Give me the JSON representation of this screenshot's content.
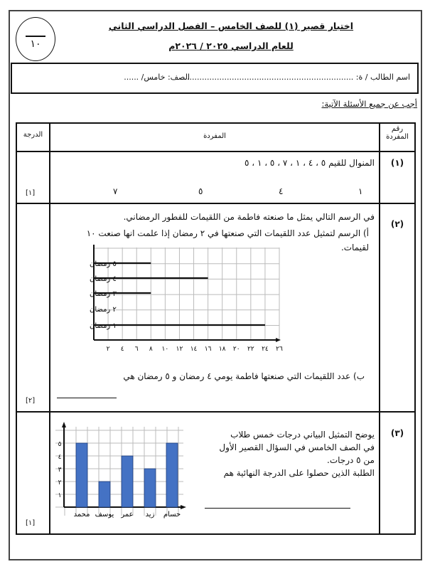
{
  "header": {
    "score_denominator": "١٠",
    "title": "اختبار قصير (١) للصف الخامس – الفصل الدراسي الثاني",
    "subtitle": "للعام الدراسي ٢٠٢٥ / ٢٠٢٦م"
  },
  "student": {
    "name_label": "اسم الطالب / ة: ......................................................................",
    "class_label": "الصف: خامس/ ......"
  },
  "instruction": "أجب عن جميع الأسئلة الآتية:",
  "table": {
    "headers": {
      "number": "رقم المفردة",
      "item": "المفردة",
      "grade": "الدرجة"
    },
    "q1": {
      "number": "(١)",
      "text": "المنوال للقيم  ٥ ، ٤ ، ١ ، ٧ ، ٥ ، ١ ، ٥",
      "options": [
        "١",
        "٤",
        "٥",
        "٧"
      ],
      "grade": "[١]"
    },
    "q2": {
      "number": "(٢)",
      "intro": "في الرسم التالي يمثل ما صنعته فاطمة من اللقيمات للفطور الرمضاني.",
      "part_a": "أ)   الرسم لتمثيل عدد اللقيمات التي صنعتها في ٢  رمضان إذا علمت انها صنعت ١٠ لقيمات.",
      "part_b": "ب)  عدد اللقيمات التي صنعتها فاطمة يومي ٤ رمضان و  ٥ رمضان هي",
      "grade": "[٢]"
    },
    "q3": {
      "number": "(٣)",
      "text": [
        "يوضح التمثيل البياني درجات خمس طلاب",
        "في الصف الخامس في السؤال القصير الأول",
        "من ٥ درجات.",
        "الطلبة الذين حصلوا على الدرجة النهائية هم"
      ],
      "grade": "[١]"
    }
  },
  "chart_data": [
    {
      "type": "bar",
      "orientation": "horizontal",
      "categories": [
        "٥ رمضان",
        "٤ رمضان",
        "٣ رمضان",
        "٢ رمضان",
        "١ رمضان"
      ],
      "values": [
        8,
        16,
        8,
        null,
        24
      ],
      "x_ticks": [
        "٢",
        "٤",
        "٦",
        "٨",
        "١٠",
        "١٢",
        "١٤",
        "١٦",
        "١٨",
        "٢٠",
        "٢٢",
        "٢٤",
        "٢٦"
      ],
      "xlim": [
        0,
        26
      ],
      "grid": true
    },
    {
      "type": "bar",
      "categories": [
        "محمد",
        "يوسف",
        "عمر",
        "زيد",
        "حسام"
      ],
      "values": [
        5,
        2,
        4,
        3,
        5
      ],
      "y_ticks": [
        "١",
        "٢",
        "٣",
        "٤",
        "٥"
      ],
      "ylim": [
        0,
        6
      ],
      "grid": true,
      "bar_color": "#4472c4"
    }
  ]
}
